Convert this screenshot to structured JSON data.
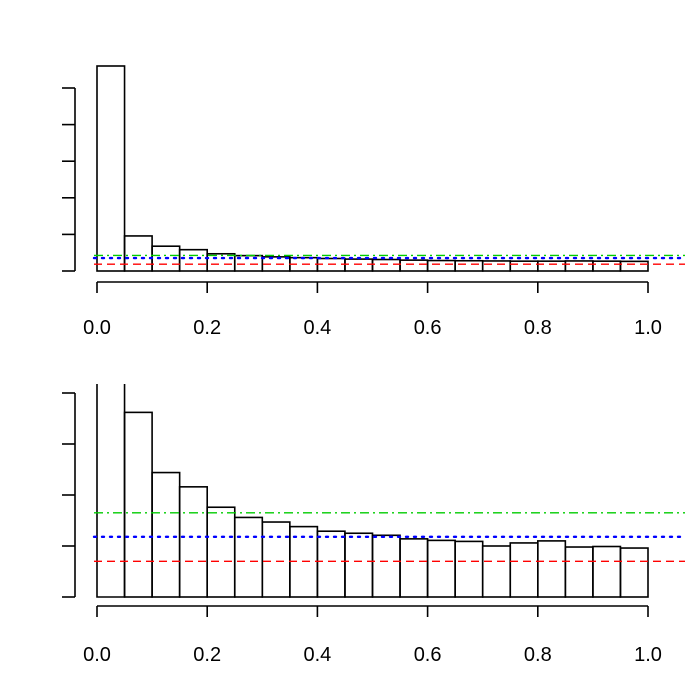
{
  "chart_data": [
    {
      "type": "bar",
      "title": "",
      "xlabel": "",
      "ylabel": "",
      "xlim": [
        0,
        1
      ],
      "ylim": [
        0,
        1
      ],
      "bin_width": 0.05,
      "bins": [
        0.0,
        0.05,
        0.1,
        0.15,
        0.2,
        0.25,
        0.3,
        0.35,
        0.4,
        0.45,
        0.5,
        0.55,
        0.6,
        0.65,
        0.7,
        0.75,
        0.8,
        0.85,
        0.9,
        0.95
      ],
      "values": [
        1.0,
        0.171,
        0.121,
        0.104,
        0.084,
        0.075,
        0.069,
        0.065,
        0.061,
        0.058,
        0.056,
        0.053,
        0.051,
        0.05,
        0.049,
        0.048,
        0.048,
        0.049,
        0.048,
        0.047
      ],
      "x_ticks": [
        "0.0",
        "0.2",
        "0.4",
        "0.6",
        "0.8",
        "1.0"
      ],
      "x_tick_values": [
        0,
        0.2,
        0.4,
        0.6,
        0.8,
        1.0
      ],
      "y_tick_values": [
        0,
        0.2,
        0.4,
        0.6,
        0.8,
        1.0
      ],
      "y_tick_labels_visible": false,
      "reference_lines": [
        {
          "value": 0.076,
          "color": "#00cc00",
          "style": "dashdot"
        },
        {
          "value": 0.063,
          "color": "#0000ff",
          "style": "dotted"
        },
        {
          "value": 0.033,
          "color": "#ff0000",
          "style": "dashed"
        }
      ],
      "grid": false
    },
    {
      "type": "bar",
      "title": "",
      "xlabel": "",
      "ylabel": "",
      "xlim": [
        0,
        1
      ],
      "ylim": [
        0,
        0.4
      ],
      "bin_width": 0.05,
      "bins": [
        0.0,
        0.05,
        0.1,
        0.15,
        0.2,
        0.25,
        0.3,
        0.35,
        0.4,
        0.45,
        0.5,
        0.55,
        0.6,
        0.65,
        0.7,
        0.75,
        0.8,
        0.85,
        0.9,
        0.95
      ],
      "values": [
        1.0,
        0.362,
        0.244,
        0.216,
        0.176,
        0.156,
        0.147,
        0.138,
        0.129,
        0.125,
        0.121,
        0.114,
        0.111,
        0.109,
        0.1,
        0.106,
        0.11,
        0.098,
        0.099,
        0.096
      ],
      "clipped_bins": [
        0
      ],
      "x_ticks": [
        "0.0",
        "0.2",
        "0.4",
        "0.6",
        "0.8",
        "1.0"
      ],
      "x_tick_values": [
        0,
        0.2,
        0.4,
        0.6,
        0.8,
        1.0
      ],
      "y_tick_values": [
        0,
        0.1,
        0.2,
        0.3,
        0.4
      ],
      "y_tick_labels_visible": false,
      "reference_lines": [
        {
          "value": 0.165,
          "color": "#00cc00",
          "style": "dashdot"
        },
        {
          "value": 0.118,
          "color": "#0000ff",
          "style": "dotted"
        },
        {
          "value": 0.07,
          "color": "#ff0000",
          "style": "dashed"
        }
      ],
      "grid": false
    }
  ]
}
